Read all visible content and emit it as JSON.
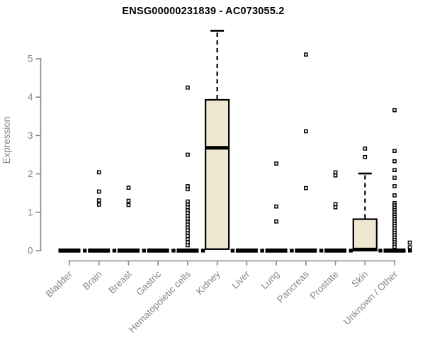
{
  "chart_data": {
    "type": "boxplot",
    "title": "ENSG00000231839 - AC073055.2",
    "ylabel": "Expression",
    "xlabel": "",
    "ylim": [
      0,
      5.8
    ],
    "yticks": [
      0,
      1,
      2,
      3,
      4,
      5
    ],
    "grid": false,
    "legend": "none",
    "colors": {
      "box_fill": "#efe8d0",
      "box_stroke": "#000000",
      "axis": "#878787",
      "title": "#000000",
      "outlier_stroke": "#000000"
    },
    "categories": [
      "Bladder",
      "Brain",
      "Breast",
      "Gastric",
      "Hematopoietic cells",
      "Kidney",
      "Liver",
      "Lung",
      "Pancreas",
      "Prostate",
      "Skin",
      "Unknown / Other"
    ],
    "groups": [
      {
        "label": "Bladder",
        "q1": 0,
        "median": 0,
        "q3": 0,
        "whisker_low": 0,
        "whisker_high": 0,
        "outliers": []
      },
      {
        "label": "Brain",
        "q1": 0,
        "median": 0,
        "q3": 0,
        "whisker_low": 0,
        "whisker_high": 0,
        "outliers": [
          2.04,
          1.54,
          1.31,
          1.2
        ]
      },
      {
        "label": "Breast",
        "q1": 0,
        "median": 0,
        "q3": 0,
        "whisker_low": 0,
        "whisker_high": 0,
        "outliers": [
          1.64,
          1.3,
          1.19
        ]
      },
      {
        "label": "Gastric",
        "q1": 0,
        "median": 0,
        "q3": 0,
        "whisker_low": 0,
        "whisker_high": 0,
        "outliers": []
      },
      {
        "label": "Hematopoietic cells",
        "q1": 0,
        "median": 0,
        "q3": 0,
        "whisker_low": 0,
        "whisker_high": 0,
        "outliers": [
          4.25,
          2.5,
          1.68,
          1.6,
          1.28,
          1.2,
          1.13,
          1.05,
          0.98,
          0.9,
          0.83,
          0.75,
          0.68,
          0.6,
          0.53,
          0.45,
          0.38,
          0.3,
          0.22,
          0.14
        ]
      },
      {
        "label": "Kidney",
        "q1": 0.04,
        "median": 2.68,
        "q3": 3.93,
        "whisker_low": 0.04,
        "whisker_high": 5.73,
        "outliers": []
      },
      {
        "label": "Liver",
        "q1": 0,
        "median": 0,
        "q3": 0,
        "whisker_low": 0,
        "whisker_high": 0,
        "outliers": []
      },
      {
        "label": "Lung",
        "q1": 0,
        "median": 0,
        "q3": 0,
        "whisker_low": 0,
        "whisker_high": 0,
        "outliers": [
          2.27,
          1.15,
          0.76
        ]
      },
      {
        "label": "Pancreas",
        "q1": 0,
        "median": 0,
        "q3": 0,
        "whisker_low": 0,
        "whisker_high": 0,
        "outliers": [
          5.11,
          3.11,
          1.63
        ]
      },
      {
        "label": "Prostate",
        "q1": 0,
        "median": 0,
        "q3": 0,
        "whisker_low": 0,
        "whisker_high": 0,
        "outliers": [
          2.04,
          1.96,
          1.21,
          1.13
        ]
      },
      {
        "label": "Skin",
        "q1": 0,
        "median": 0.03,
        "q3": 0.82,
        "whisker_low": 0,
        "whisker_high": 2.01,
        "outliers": [
          2.66,
          2.44
        ]
      },
      {
        "label": "Unknown / Other",
        "q1": 0,
        "median": 0,
        "q3": 0,
        "whisker_low": 0,
        "whisker_high": 0,
        "outliers": [
          3.66,
          2.6,
          2.33,
          2.1,
          1.9,
          1.68,
          1.44,
          1.24,
          1.18,
          1.12,
          1.06,
          1.0,
          0.94,
          0.88,
          0.82,
          0.76,
          0.7,
          0.64,
          0.58,
          0.52,
          0.46,
          0.4,
          0.34,
          0.28,
          0.22,
          0.16,
          0.1
        ]
      }
    ],
    "zero_companion_marks": {
      "present_for_all_groups": true,
      "value": 0,
      "extra_points": {
        "group": "Unknown / Other",
        "values": [
          0.21,
          0.09
        ]
      }
    }
  }
}
